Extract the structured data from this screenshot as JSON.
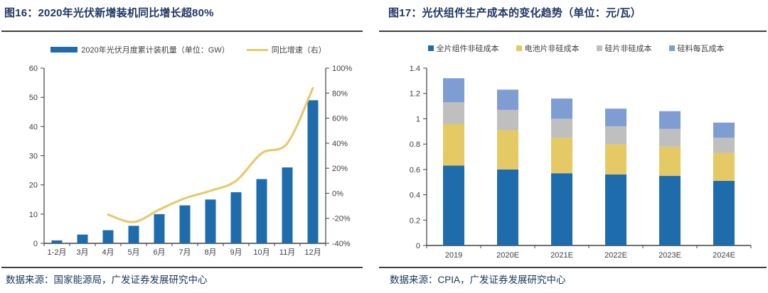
{
  "panels": [
    {
      "title": "图16：2020年光伏新增装机同比增长超80%",
      "source": "数据来源：国家能源局，广发证券发展研究中心"
    },
    {
      "title": "图17：光伏组件生产成本的变化趋势（单位：元/瓦）",
      "source": "数据来源：CPIA，广发证券发展研究中心"
    }
  ],
  "colors": {
    "title_navy": "#1F3864",
    "source_navy": "#17365D",
    "rule_dark": "#3F3F3F",
    "axis_line": "#404040",
    "tick_text": "#404040",
    "bar_blue": "#1E6CAC",
    "line_yellow": "#E6CB6C",
    "stack_blue": "#1E6CAC",
    "stack_yellow": "#E5C964",
    "stack_gray": "#BFBFBF",
    "stack_lightblue": "#7E9DD3"
  },
  "chart_data": [
    {
      "type": "bar+line",
      "title": "2020年光伏新增装机同比增长超80%",
      "categories": [
        "1-2月",
        "3月",
        "4月",
        "5月",
        "6月",
        "7月",
        "8月",
        "9月",
        "10月",
        "11月",
        "12月"
      ],
      "series": [
        {
          "name": "2020年光伏月度累计装机量（单位：GW）",
          "kind": "bar",
          "axis": "left",
          "color_key": "bar_blue",
          "values": [
            1,
            3,
            4.5,
            6,
            10,
            13,
            15,
            17.5,
            22,
            26,
            49
          ]
        },
        {
          "name": "同比增速（右）",
          "kind": "line",
          "axis": "right",
          "color_key": "line_yellow",
          "values": [
            null,
            null,
            -17,
            -23,
            -13,
            -4,
            2,
            10,
            32,
            40,
            84
          ]
        }
      ],
      "left_axis": {
        "min": 0,
        "max": 60,
        "tick_values": [
          0,
          10,
          20,
          30,
          40,
          50,
          60
        ],
        "tick_labels": [
          "0",
          "10",
          "20",
          "30",
          "40",
          "50",
          "60"
        ]
      },
      "right_axis": {
        "min": -40,
        "max": 100,
        "tick_values": [
          -40,
          -20,
          0,
          20,
          40,
          60,
          80,
          100
        ],
        "tick_labels": [
          "-40%",
          "-20%",
          "0%",
          "20%",
          "40%",
          "60%",
          "80%",
          "100%"
        ]
      },
      "grid": false,
      "legend_position": "top"
    },
    {
      "type": "stacked-bar",
      "title": "光伏组件生产成本的变化趋势（单位：元/瓦）",
      "categories": [
        "2019",
        "2020E",
        "2021E",
        "2022E",
        "2023E",
        "2024E"
      ],
      "series": [
        {
          "name": "全片组件非硅成本",
          "color_key": "stack_blue",
          "values": [
            0.63,
            0.6,
            0.57,
            0.56,
            0.55,
            0.51
          ]
        },
        {
          "name": "电池片非硅成本",
          "color_key": "stack_yellow",
          "values": [
            0.33,
            0.31,
            0.28,
            0.24,
            0.23,
            0.22
          ]
        },
        {
          "name": "硅片非硅成本",
          "color_key": "stack_gray",
          "values": [
            0.17,
            0.16,
            0.15,
            0.14,
            0.14,
            0.12
          ]
        },
        {
          "name": "硅料每瓦成本",
          "color_key": "stack_lightblue",
          "values": [
            0.19,
            0.16,
            0.16,
            0.14,
            0.14,
            0.12
          ]
        }
      ],
      "y_axis": {
        "min": 0,
        "max": 1.4,
        "tick_values": [
          0,
          0.2,
          0.4,
          0.6,
          0.8,
          1,
          1.2,
          1.4
        ],
        "tick_labels": [
          "0",
          "0.2",
          "0.4",
          "0.6",
          "0.8",
          "1",
          "1.2",
          "1.4"
        ]
      },
      "grid": false,
      "legend_position": "top"
    }
  ]
}
